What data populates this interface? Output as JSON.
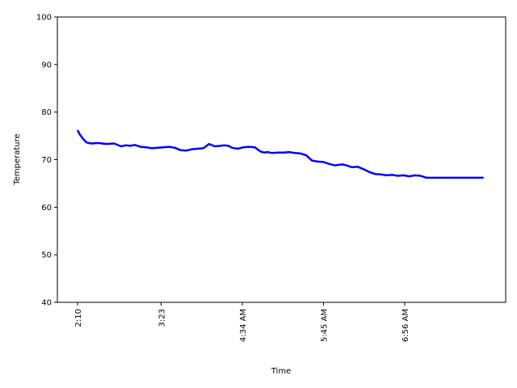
{
  "chart_data": {
    "type": "line",
    "title": "",
    "xlabel": "Time",
    "ylabel": "Temperature",
    "ylim": [
      40,
      100
    ],
    "yticks": [
      40,
      50,
      60,
      70,
      80,
      90,
      100
    ],
    "xtick_labels": [
      "2:10",
      "3:23",
      "4:34 AM",
      "5:45 AM",
      "6:56 AM"
    ],
    "xtick_positions_minutes": [
      0,
      73,
      144,
      215,
      286
    ],
    "grid": false,
    "legend": "none",
    "series": [
      {
        "color": "#0000ff",
        "x_minutes": [
          0,
          2,
          5,
          8,
          12,
          18,
          25,
          32,
          38,
          42,
          46,
          50,
          55,
          60,
          65,
          70,
          75,
          80,
          85,
          90,
          95,
          100,
          105,
          110,
          115,
          120,
          125,
          128,
          132,
          135,
          140,
          145,
          150,
          155,
          160,
          163,
          166,
          170,
          175,
          180,
          185,
          190,
          195,
          200,
          205,
          210,
          215,
          220,
          225,
          228,
          232,
          235,
          240,
          245,
          250,
          255,
          260,
          265,
          270,
          275,
          280,
          285,
          290,
          295,
          300,
          305,
          310,
          315,
          320,
          325,
          330,
          335,
          340,
          345,
          350,
          355
        ],
        "values": [
          76.2,
          75.3,
          74.3,
          73.6,
          73.4,
          73.5,
          73.3,
          73.4,
          72.8,
          73.0,
          72.9,
          73.1,
          72.7,
          72.6,
          72.4,
          72.5,
          72.6,
          72.7,
          72.5,
          72.0,
          71.9,
          72.2,
          72.3,
          72.4,
          73.3,
          72.8,
          72.9,
          73.0,
          72.9,
          72.5,
          72.3,
          72.6,
          72.7,
          72.6,
          71.7,
          71.5,
          71.6,
          71.4,
          71.5,
          71.5,
          71.6,
          71.4,
          71.3,
          70.9,
          69.8,
          69.6,
          69.5,
          69.1,
          68.8,
          68.9,
          69.0,
          68.8,
          68.4,
          68.5,
          68.0,
          67.4,
          67.0,
          66.9,
          66.7,
          66.8,
          66.6,
          66.7,
          66.5,
          66.7,
          66.6,
          66.2,
          66.2,
          66.2,
          66.2,
          66.2,
          66.2,
          66.2,
          66.2,
          66.2,
          66.2,
          66.2
        ]
      }
    ]
  }
}
